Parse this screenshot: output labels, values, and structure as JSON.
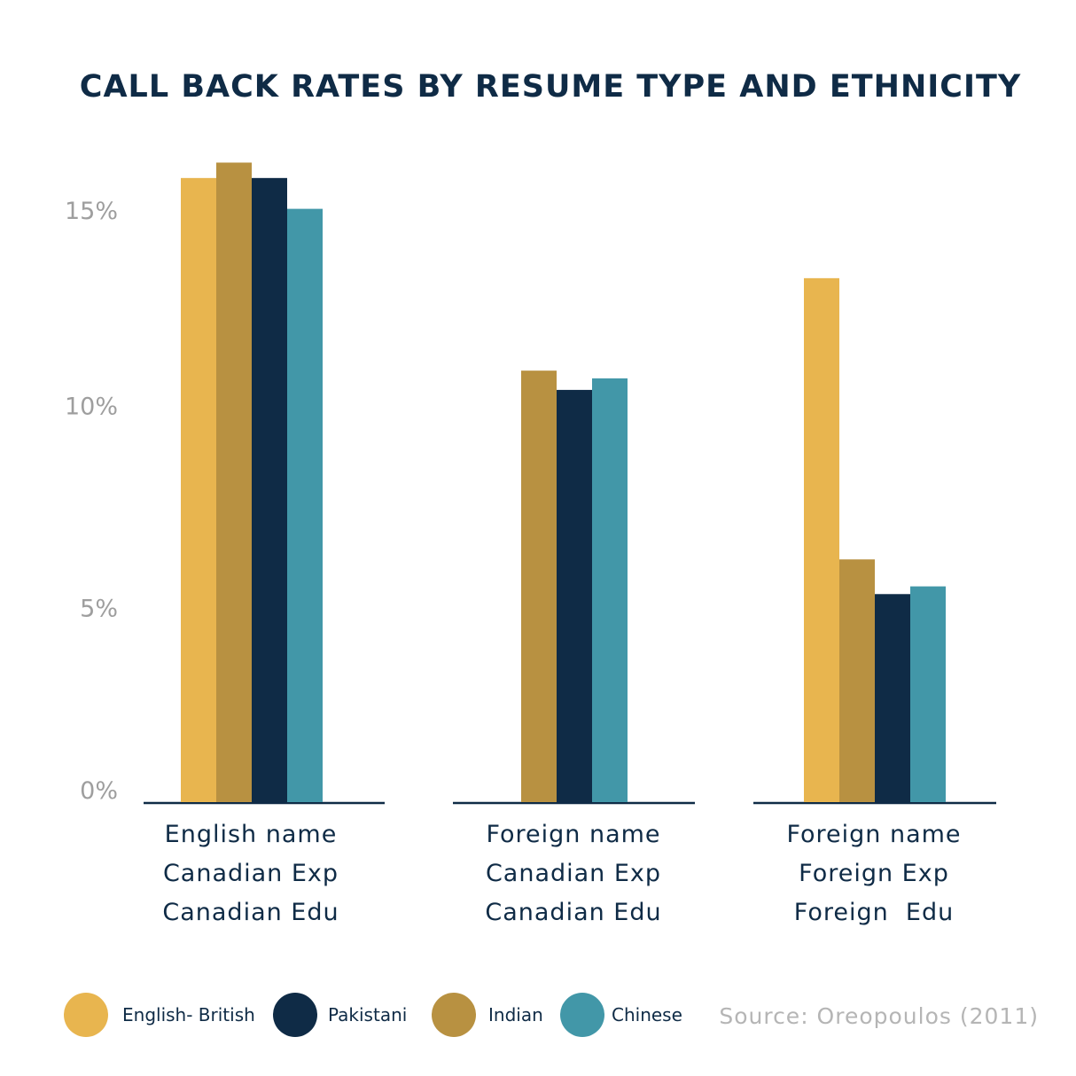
{
  "chart_data": {
    "type": "bar",
    "title": "CALL BACK RATES BY RESUME TYPE AND ETHNICITY",
    "xlabel": "",
    "ylabel": "",
    "ylim": [
      0,
      17
    ],
    "yticks": [
      {
        "value": 0,
        "label": "0%"
      },
      {
        "value": 5,
        "label": "5%"
      },
      {
        "value": 10,
        "label": "10%"
      },
      {
        "value": 15,
        "label": "15%"
      }
    ],
    "categories": [
      {
        "lines": [
          "English name",
          "Canadian Exp",
          "Canadian Edu"
        ]
      },
      {
        "lines": [
          "Foreign name",
          "Canadian Exp",
          "Canadian Edu"
        ]
      },
      {
        "lines": [
          "Foreign name",
          "Foreign Exp",
          "Foreign  Edu"
        ]
      }
    ],
    "series": [
      {
        "name": "English- British",
        "color": "#e8b54f",
        "values": [
          16.2,
          null,
          13.6
        ]
      },
      {
        "name": "Indian",
        "color": "#b89141",
        "values": [
          16.6,
          11.2,
          6.3
        ]
      },
      {
        "name": "Pakistani",
        "color": "#0f2b46",
        "values": [
          16.2,
          10.7,
          5.4
        ]
      },
      {
        "name": "Chinese",
        "color": "#4297a8",
        "values": [
          15.4,
          11.0,
          5.6
        ]
      }
    ],
    "legend": {
      "position": "bottom",
      "order": [
        "English- British",
        "Pakistani",
        "Indian",
        "Chinese"
      ]
    },
    "source": "Source: Oreopoulos (2011)",
    "grid": false
  }
}
